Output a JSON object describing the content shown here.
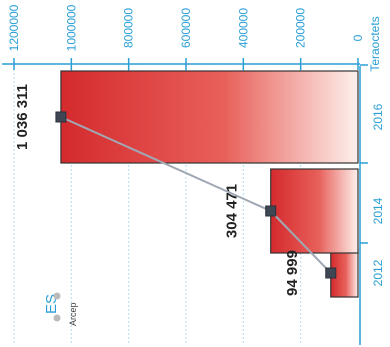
{
  "chart_data": {
    "type": "bar",
    "orientation": "rotated",
    "categories": [
      "2012",
      "2014",
      "2016"
    ],
    "values": [
      94999,
      304471,
      1036311
    ],
    "data_labels": [
      "94 999",
      "304 471",
      "1 036 311"
    ],
    "unit_label": "Teraoctets",
    "axis_ticks": [
      "0",
      "200000",
      "400000",
      "600000",
      "800000",
      "1000000",
      "1200000"
    ],
    "ylim": [
      0,
      1200000
    ],
    "grid": true,
    "legend": [
      "Arcep"
    ],
    "legend_partial": "ES",
    "colors": {
      "bar_dark": "#d42a2d",
      "bar_light": "#fdf0ec",
      "axis": "#2a9fd6",
      "line": "#a0a8b4",
      "marker": "#3f4654"
    }
  }
}
